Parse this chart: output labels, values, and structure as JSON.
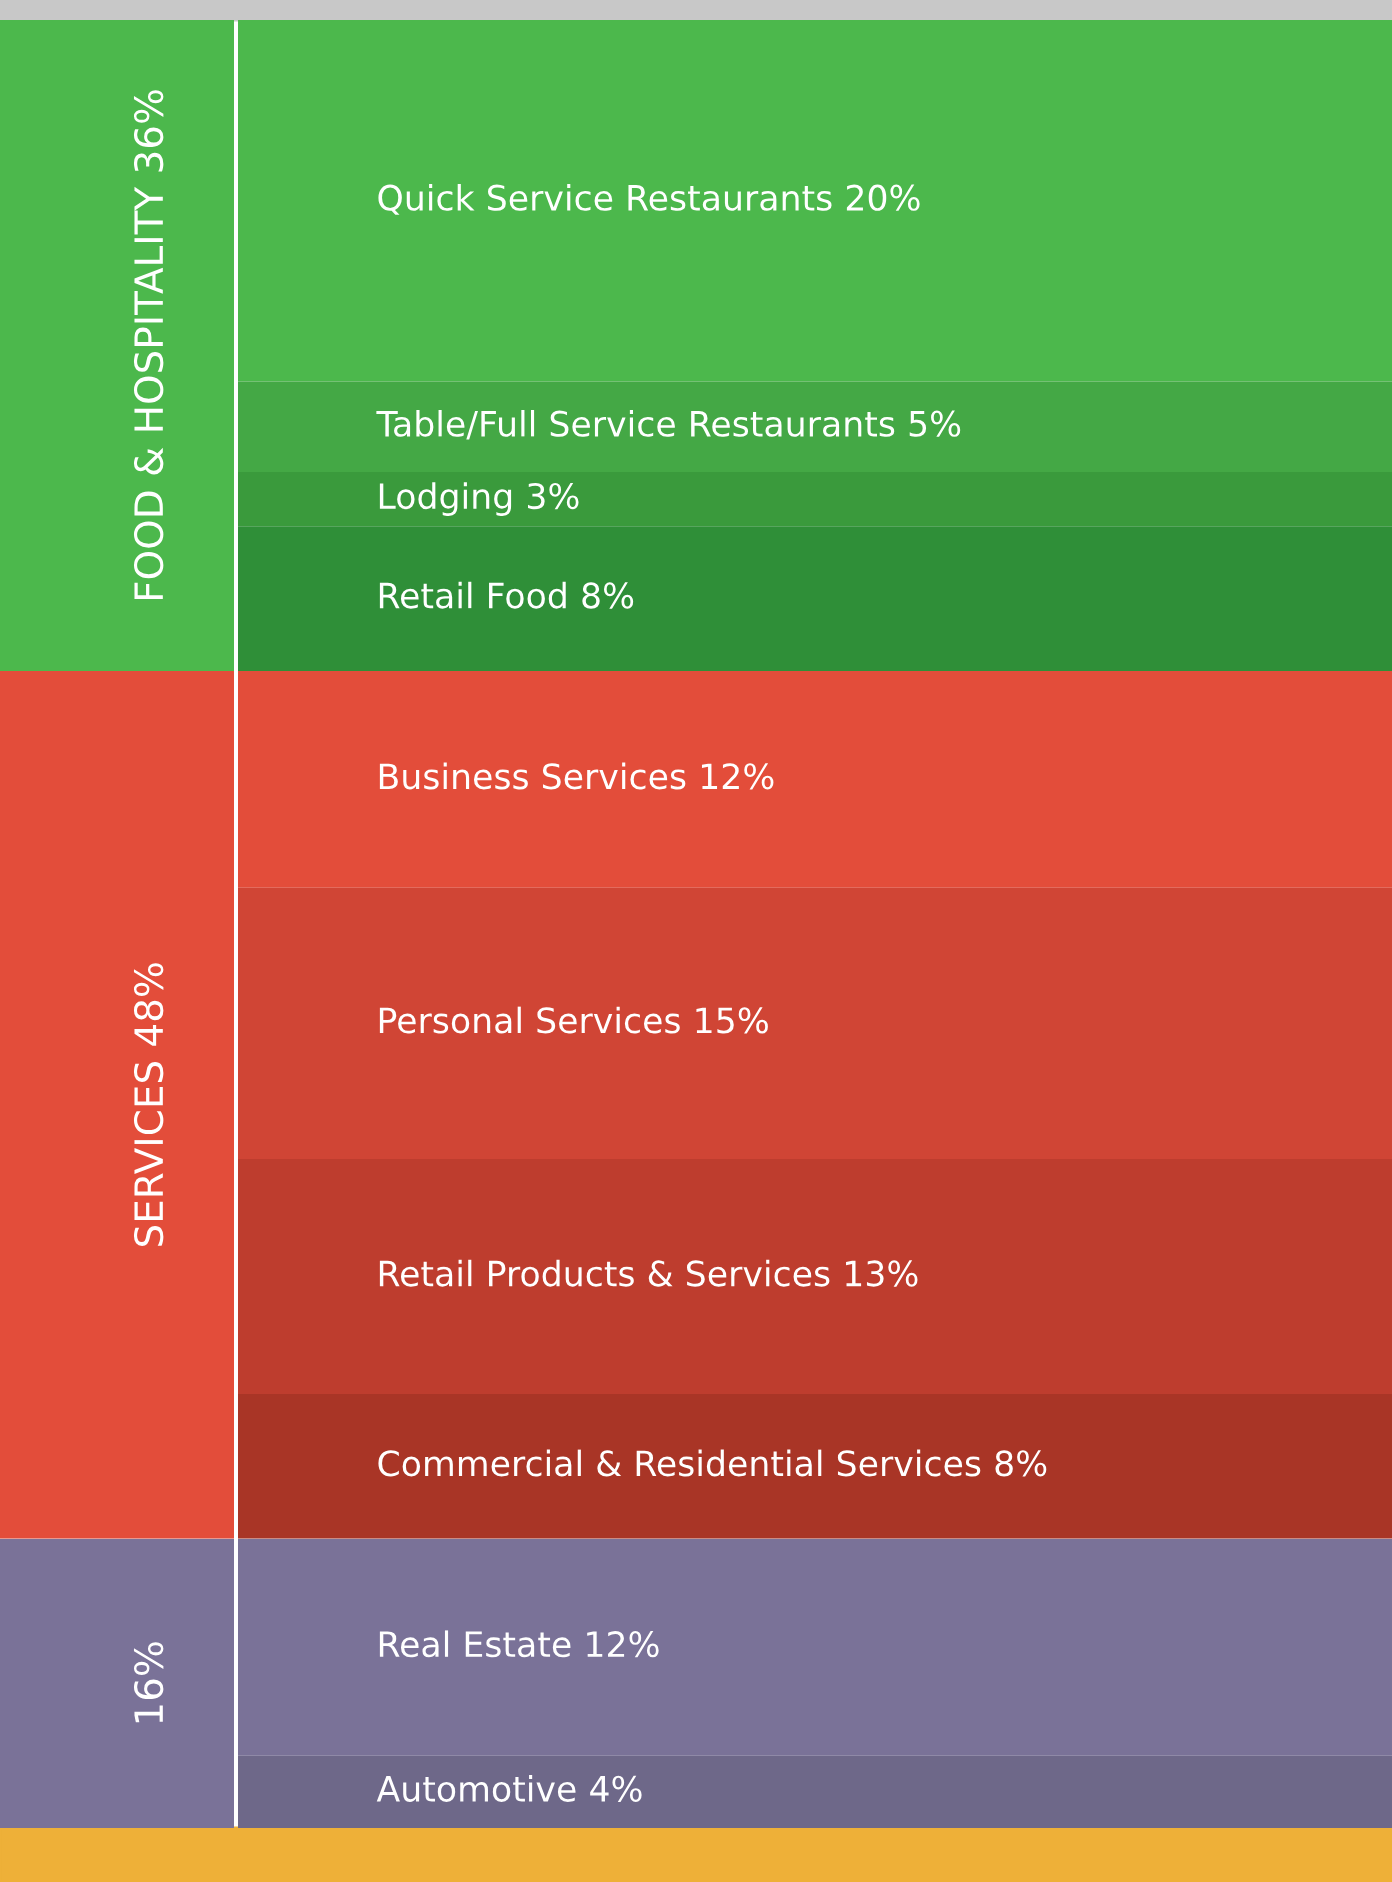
{
  "chart_data": [
    {
      "type": "other",
      "title": "FOOD & HOSPITALITY 36%",
      "categories": [
        "Quick Service Restaurants",
        "Table/Full Service Restaurants",
        "Lodging",
        "Retail Food"
      ],
      "values": [
        20,
        5,
        3,
        8
      ],
      "value_labels": [
        "20%",
        "5%",
        "3%",
        "8%"
      ],
      "colors": [
        "#4cb84c",
        "#44a845",
        "#3a9a3c",
        "#2f8f38"
      ]
    },
    {
      "type": "other",
      "title": "SERVICES 48%",
      "categories": [
        "Business Services",
        "Personal Services",
        "Retail Products & Services",
        "Commercial & Residential Services"
      ],
      "values": [
        12,
        15,
        13,
        8
      ],
      "value_labels": [
        "12%",
        "15%",
        "13%",
        "8%"
      ],
      "colors": [
        "#e34d3a",
        "#d04535",
        "#be3d2e",
        "#a93526"
      ]
    },
    {
      "type": "other",
      "title": "16%",
      "categories": [
        "Real Estate",
        "Automotive"
      ],
      "values": [
        12,
        4
      ],
      "value_labels": [
        "12%",
        "4%"
      ],
      "colors": [
        "#7a7298",
        "#6e6889"
      ]
    }
  ]
}
